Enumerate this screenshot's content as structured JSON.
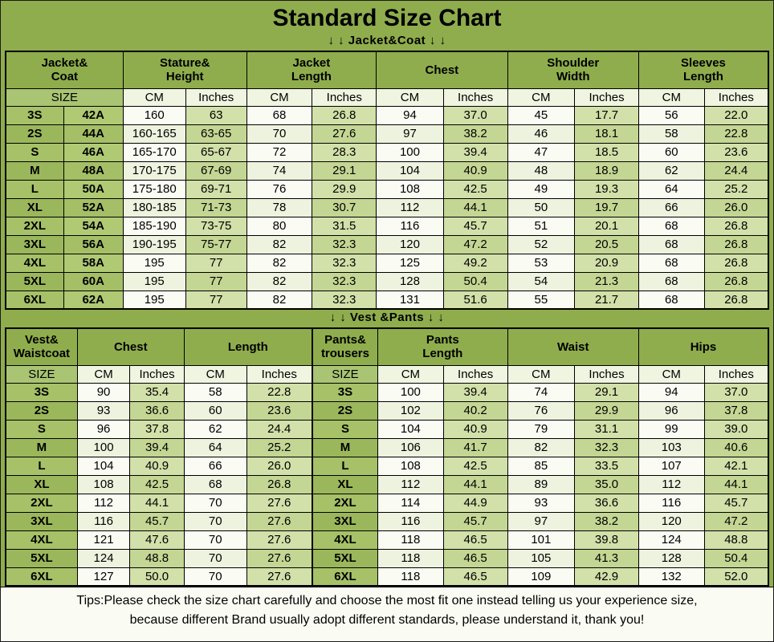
{
  "page": {
    "title": "Standard Size Chart",
    "section1_label": "↓ ↓  Jacket&Coat ↓ ↓",
    "section2_label": "↓ ↓  Vest &Pants ↓ ↓",
    "tips_line1": "Tips:Please check the size chart carefully and choose the most fit one instead telling us your experience size,",
    "tips_line2": "because different Brand usually adopt different standards, please understand it, thank you!"
  },
  "colors": {
    "background_green": "#8FAD4D",
    "light_green_cell": "#C9DA9B",
    "pale_cell": "#F6F9EC",
    "size_cell_green": "#A3BE63",
    "border": "#000000"
  },
  "chart_data": [
    {
      "type": "table",
      "title": "Jacket&Coat",
      "group_headers": [
        "Jacket&\nCoat",
        "Stature&\nHeight",
        "Jacket\nLength",
        "Chest",
        "Shoulder\nWidth",
        "Sleeves\nLength"
      ],
      "unit_row": [
        "SIZE",
        "CM",
        "Inches",
        "CM",
        "Inches",
        "CM",
        "Inches",
        "CM",
        "Inches",
        "CM",
        "Inches"
      ],
      "rows": [
        [
          "3S",
          "42A",
          "160",
          "63",
          "68",
          "26.8",
          "94",
          "37.0",
          "45",
          "17.7",
          "56",
          "22.0"
        ],
        [
          "2S",
          "44A",
          "160-165",
          "63-65",
          "70",
          "27.6",
          "97",
          "38.2",
          "46",
          "18.1",
          "58",
          "22.8"
        ],
        [
          "S",
          "46A",
          "165-170",
          "65-67",
          "72",
          "28.3",
          "100",
          "39.4",
          "47",
          "18.5",
          "60",
          "23.6"
        ],
        [
          "M",
          "48A",
          "170-175",
          "67-69",
          "74",
          "29.1",
          "104",
          "40.9",
          "48",
          "18.9",
          "62",
          "24.4"
        ],
        [
          "L",
          "50A",
          "175-180",
          "69-71",
          "76",
          "29.9",
          "108",
          "42.5",
          "49",
          "19.3",
          "64",
          "25.2"
        ],
        [
          "XL",
          "52A",
          "180-185",
          "71-73",
          "78",
          "30.7",
          "112",
          "44.1",
          "50",
          "19.7",
          "66",
          "26.0"
        ],
        [
          "2XL",
          "54A",
          "185-190",
          "73-75",
          "80",
          "31.5",
          "116",
          "45.7",
          "51",
          "20.1",
          "68",
          "26.8"
        ],
        [
          "3XL",
          "56A",
          "190-195",
          "75-77",
          "82",
          "32.3",
          "120",
          "47.2",
          "52",
          "20.5",
          "68",
          "26.8"
        ],
        [
          "4XL",
          "58A",
          "195",
          "77",
          "82",
          "32.3",
          "125",
          "49.2",
          "53",
          "20.9",
          "68",
          "26.8"
        ],
        [
          "5XL",
          "60A",
          "195",
          "77",
          "82",
          "32.3",
          "128",
          "50.4",
          "54",
          "21.3",
          "68",
          "26.8"
        ],
        [
          "6XL",
          "62A",
          "195",
          "77",
          "82",
          "32.3",
          "131",
          "51.6",
          "55",
          "21.7",
          "68",
          "26.8"
        ]
      ]
    },
    {
      "type": "table",
      "title": "Vest &Pants",
      "group_headers": [
        "Vest&\nWaistcoat",
        "Chest",
        "Length",
        "Pants&\ntrousers",
        "Pants\nLength",
        "Waist",
        "Hips"
      ],
      "unit_row": [
        "SIZE",
        "CM",
        "Inches",
        "CM",
        "Inches",
        "SIZE",
        "CM",
        "Inches",
        "CM",
        "Inches",
        "CM",
        "Inches"
      ],
      "rows": [
        [
          "3S",
          "90",
          "35.4",
          "58",
          "22.8",
          "3S",
          "100",
          "39.4",
          "74",
          "29.1",
          "94",
          "37.0"
        ],
        [
          "2S",
          "93",
          "36.6",
          "60",
          "23.6",
          "2S",
          "102",
          "40.2",
          "76",
          "29.9",
          "96",
          "37.8"
        ],
        [
          "S",
          "96",
          "37.8",
          "62",
          "24.4",
          "S",
          "104",
          "40.9",
          "79",
          "31.1",
          "99",
          "39.0"
        ],
        [
          "M",
          "100",
          "39.4",
          "64",
          "25.2",
          "M",
          "106",
          "41.7",
          "82",
          "32.3",
          "103",
          "40.6"
        ],
        [
          "L",
          "104",
          "40.9",
          "66",
          "26.0",
          "L",
          "108",
          "42.5",
          "85",
          "33.5",
          "107",
          "42.1"
        ],
        [
          "XL",
          "108",
          "42.5",
          "68",
          "26.8",
          "XL",
          "112",
          "44.1",
          "89",
          "35.0",
          "112",
          "44.1"
        ],
        [
          "2XL",
          "112",
          "44.1",
          "70",
          "27.6",
          "2XL",
          "114",
          "44.9",
          "93",
          "36.6",
          "116",
          "45.7"
        ],
        [
          "3XL",
          "116",
          "45.7",
          "70",
          "27.6",
          "3XL",
          "116",
          "45.7",
          "97",
          "38.2",
          "120",
          "47.2"
        ],
        [
          "4XL",
          "121",
          "47.6",
          "70",
          "27.6",
          "4XL",
          "118",
          "46.5",
          "101",
          "39.8",
          "124",
          "48.8"
        ],
        [
          "5XL",
          "124",
          "48.8",
          "70",
          "27.6",
          "5XL",
          "118",
          "46.5",
          "105",
          "41.3",
          "128",
          "50.4"
        ],
        [
          "6XL",
          "127",
          "50.0",
          "70",
          "27.6",
          "6XL",
          "118",
          "46.5",
          "109",
          "42.9",
          "132",
          "52.0"
        ]
      ]
    }
  ]
}
